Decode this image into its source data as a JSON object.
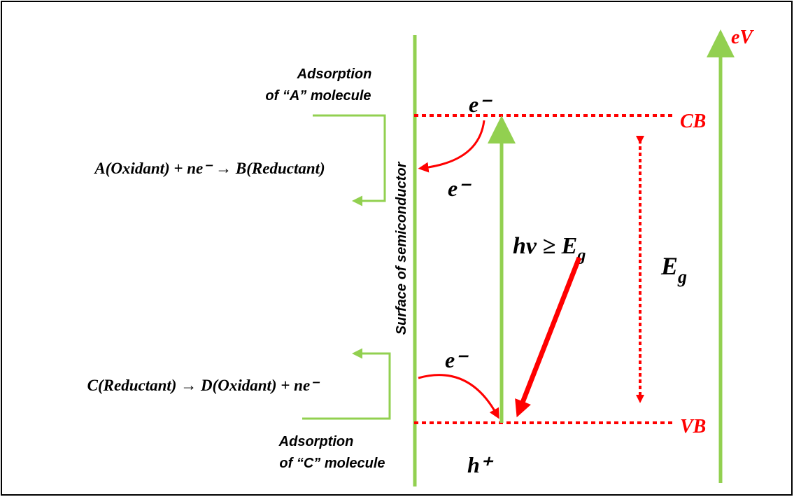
{
  "axis_label": "eV",
  "levels": {
    "cb": "CB",
    "vb": "VB"
  },
  "surface_label": "Surface of semiconductor",
  "top_adsorption": [
    "Adsorption",
    "of “A” molecule"
  ],
  "bottom_adsorption": [
    "Adsorption",
    "of “C” molecule"
  ],
  "reaction_top": "A(Oxidant) + ne⁻ → B(Reductant)",
  "reaction_bottom": "C(Reductant)  →  D(Oxidant) + ne⁻",
  "electrons": [
    "e⁻",
    "e⁻",
    "e⁻"
  ],
  "hole": "h⁺",
  "photon": {
    "text": "hv ≥ E",
    "sub": "g"
  },
  "gap": {
    "text": "E",
    "sub": "g"
  }
}
